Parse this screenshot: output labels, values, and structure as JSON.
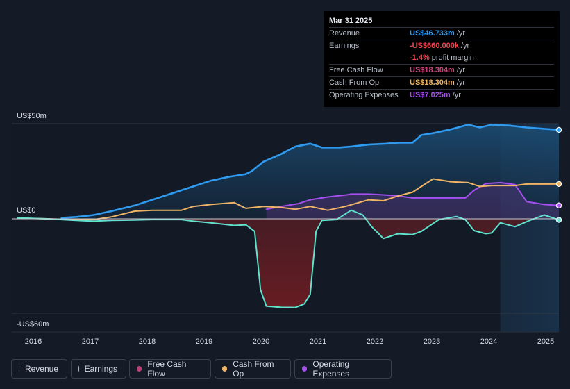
{
  "tooltip": {
    "date": "Mar 31 2025",
    "rows": [
      {
        "label": "Revenue",
        "value": "US$46.733m",
        "unit": "/yr",
        "color": "#2e9bf0"
      },
      {
        "label": "Earnings",
        "value": "-US$660.000k",
        "unit": "/yr",
        "color": "#f0424a"
      },
      {
        "label": "",
        "value": "-1.4%",
        "unit": "profit margin",
        "color": "#f0424a"
      },
      {
        "label": "Free Cash Flow",
        "value": "US$18.304m",
        "unit": "/yr",
        "color": "#d0457f"
      },
      {
        "label": "Cash From Op",
        "value": "US$18.304m",
        "unit": "/yr",
        "color": "#f0b466"
      },
      {
        "label": "Operating Expenses",
        "value": "US$7.025m",
        "unit": "/yr",
        "color": "#a64ff0"
      }
    ]
  },
  "legend": [
    {
      "label": "Revenue",
      "color": "#2e9bf0"
    },
    {
      "label": "Earnings",
      "color": "#5fe3cf"
    },
    {
      "label": "Free Cash Flow",
      "color": "#c23e78"
    },
    {
      "label": "Cash From Op",
      "color": "#f0b466"
    },
    {
      "label": "Operating Expenses",
      "color": "#a64ff0"
    }
  ],
  "chart_data": {
    "type": "area",
    "y_unit": "US$ millions",
    "ylim": [
      -60,
      50
    ],
    "y_tick_labels": [
      {
        "value": 50,
        "label": "US$50m"
      },
      {
        "value": 0,
        "label": "US$0"
      },
      {
        "value": -60,
        "label": "-US$60m"
      }
    ],
    "xlim": [
      2015.9,
      2025.25
    ],
    "x_tick_labels": [
      "2016",
      "2017",
      "2018",
      "2019",
      "2020",
      "2021",
      "2022",
      "2023",
      "2024",
      "2025"
    ],
    "highlight_from": 2024.25,
    "series": [
      {
        "name": "Revenue",
        "color": "#2e9bf0",
        "fill": true,
        "end_marker": true,
        "points": [
          [
            2016.75,
            0.5
          ],
          [
            2017.0,
            1
          ],
          [
            2017.3,
            2
          ],
          [
            2017.6,
            4
          ],
          [
            2018.0,
            7
          ],
          [
            2018.3,
            10
          ],
          [
            2018.7,
            14
          ],
          [
            2019.0,
            17
          ],
          [
            2019.3,
            20
          ],
          [
            2019.6,
            22
          ],
          [
            2019.9,
            23.5
          ],
          [
            2020.0,
            25
          ],
          [
            2020.2,
            30
          ],
          [
            2020.5,
            34
          ],
          [
            2020.75,
            38
          ],
          [
            2021.0,
            39.5
          ],
          [
            2021.2,
            37.5
          ],
          [
            2021.5,
            37.5
          ],
          [
            2021.7,
            38
          ],
          [
            2022.0,
            39
          ],
          [
            2022.3,
            39.5
          ],
          [
            2022.5,
            40
          ],
          [
            2022.75,
            40
          ],
          [
            2022.9,
            44
          ],
          [
            2023.1,
            45
          ],
          [
            2023.4,
            47
          ],
          [
            2023.7,
            49.5
          ],
          [
            2023.9,
            48
          ],
          [
            2024.1,
            49.5
          ],
          [
            2024.4,
            49
          ],
          [
            2024.7,
            48
          ],
          [
            2025.0,
            47.3
          ],
          [
            2025.25,
            46.73
          ]
        ]
      },
      {
        "name": "Earnings",
        "color": "#5fe3cf",
        "fill": true,
        "fill_negative_color": "#6b1c22",
        "end_marker": true,
        "points": [
          [
            2016.0,
            0.5
          ],
          [
            2016.5,
            0
          ],
          [
            2017.0,
            -1
          ],
          [
            2017.3,
            -1.5
          ],
          [
            2017.6,
            -1
          ],
          [
            2018.0,
            -0.8
          ],
          [
            2018.3,
            -0.5
          ],
          [
            2018.8,
            -0.5
          ],
          [
            2019.0,
            -1.5
          ],
          [
            2019.3,
            -2.5
          ],
          [
            2019.7,
            -4.2
          ],
          [
            2019.9,
            -3.8
          ],
          [
            2020.05,
            -8
          ],
          [
            2020.15,
            -45
          ],
          [
            2020.25,
            -55.5
          ],
          [
            2020.5,
            -56.2
          ],
          [
            2020.75,
            -56.3
          ],
          [
            2020.9,
            -54
          ],
          [
            2021.0,
            -48
          ],
          [
            2021.1,
            -8
          ],
          [
            2021.2,
            -1
          ],
          [
            2021.45,
            -0.5
          ],
          [
            2021.7,
            4.5
          ],
          [
            2021.9,
            2
          ],
          [
            2022.05,
            -5
          ],
          [
            2022.25,
            -12.5
          ],
          [
            2022.5,
            -9.5
          ],
          [
            2022.75,
            -10
          ],
          [
            2022.9,
            -8
          ],
          [
            2023.2,
            -0.5
          ],
          [
            2023.5,
            1.2
          ],
          [
            2023.65,
            -0.5
          ],
          [
            2023.8,
            -7.5
          ],
          [
            2024.0,
            -9.5
          ],
          [
            2024.1,
            -9
          ],
          [
            2024.25,
            -2.5
          ],
          [
            2024.5,
            -5
          ],
          [
            2024.75,
            -1
          ],
          [
            2025.0,
            2
          ],
          [
            2025.25,
            -0.66
          ]
        ]
      },
      {
        "name": "Cash From Op",
        "color": "#f0b466",
        "fill": false,
        "end_marker": true,
        "points": [
          [
            2016.0,
            0.4
          ],
          [
            2016.5,
            0
          ],
          [
            2017.0,
            -0.6
          ],
          [
            2017.3,
            -0.5
          ],
          [
            2017.6,
            1
          ],
          [
            2018.0,
            4
          ],
          [
            2018.3,
            4.5
          ],
          [
            2018.8,
            4.5
          ],
          [
            2019.0,
            6.5
          ],
          [
            2019.3,
            7.5
          ],
          [
            2019.7,
            8.5
          ],
          [
            2019.9,
            5.5
          ],
          [
            2020.2,
            6.5
          ],
          [
            2020.5,
            6
          ],
          [
            2020.75,
            5
          ],
          [
            2021.0,
            6.5
          ],
          [
            2021.3,
            4.5
          ],
          [
            2021.6,
            6.5
          ],
          [
            2022.0,
            10
          ],
          [
            2022.25,
            9.5
          ],
          [
            2022.5,
            12
          ],
          [
            2022.75,
            14
          ],
          [
            2022.9,
            17
          ],
          [
            2023.1,
            21
          ],
          [
            2023.4,
            19.5
          ],
          [
            2023.7,
            19
          ],
          [
            2023.9,
            17
          ],
          [
            2024.1,
            17.5
          ],
          [
            2024.5,
            17.5
          ],
          [
            2024.7,
            18.3
          ],
          [
            2025.0,
            18.3
          ],
          [
            2025.25,
            18.3
          ]
        ]
      },
      {
        "name": "Operating Expenses",
        "color": "#a64ff0",
        "fill": true,
        "end_marker": true,
        "points": [
          [
            2020.25,
            5
          ],
          [
            2020.5,
            6.5
          ],
          [
            2020.8,
            8
          ],
          [
            2021.0,
            10
          ],
          [
            2021.3,
            11.5
          ],
          [
            2021.6,
            12.5
          ],
          [
            2021.7,
            13
          ],
          [
            2022.0,
            13
          ],
          [
            2022.3,
            12.5
          ],
          [
            2022.5,
            12
          ],
          [
            2022.75,
            11
          ],
          [
            2023.0,
            11
          ],
          [
            2023.5,
            11
          ],
          [
            2023.65,
            11
          ],
          [
            2023.8,
            15
          ],
          [
            2024.0,
            18.5
          ],
          [
            2024.25,
            19
          ],
          [
            2024.5,
            18
          ],
          [
            2024.7,
            9
          ],
          [
            2025.0,
            7.5
          ],
          [
            2025.25,
            7.03
          ]
        ]
      }
    ]
  }
}
